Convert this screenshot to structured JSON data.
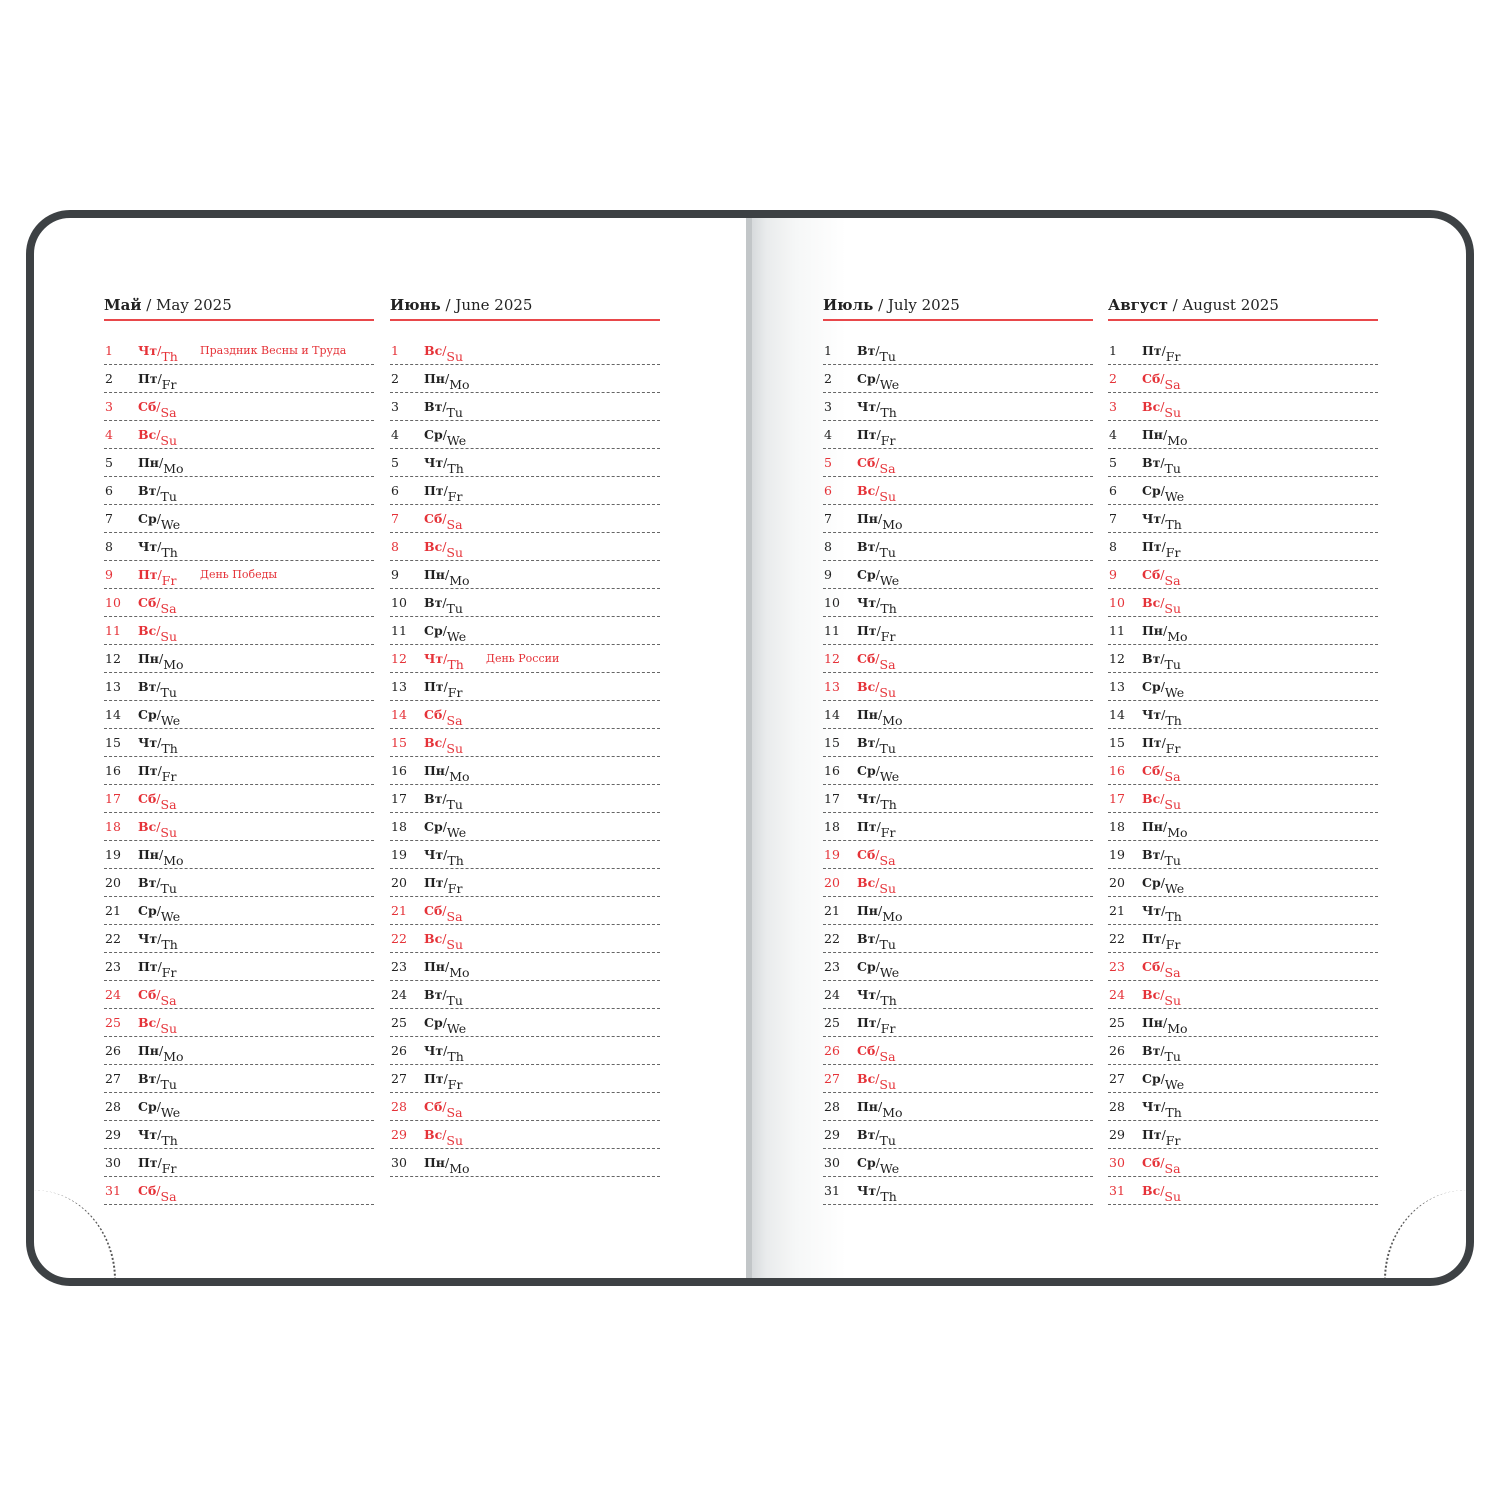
{
  "colors": {
    "accent": "#e53238",
    "frame": "#3d4144",
    "text": "#222222"
  },
  "months": [
    {
      "ru": "Май",
      "en": "May 2025",
      "days": [
        [
          "1",
          "Чт",
          "Th",
          1,
          "Праздник Весны и Труда"
        ],
        [
          "2",
          "Пт",
          "Fr",
          0,
          ""
        ],
        [
          "3",
          "Сб",
          "Sa",
          1,
          ""
        ],
        [
          "4",
          "Вс",
          "Su",
          1,
          ""
        ],
        [
          "5",
          "Пн",
          "Mo",
          0,
          ""
        ],
        [
          "6",
          "Вт",
          "Tu",
          0,
          ""
        ],
        [
          "7",
          "Ср",
          "We",
          0,
          ""
        ],
        [
          "8",
          "Чт",
          "Th",
          0,
          ""
        ],
        [
          "9",
          "Пт",
          "Fr",
          1,
          "День Победы"
        ],
        [
          "10",
          "Сб",
          "Sa",
          1,
          ""
        ],
        [
          "11",
          "Вс",
          "Su",
          1,
          ""
        ],
        [
          "12",
          "Пн",
          "Mo",
          0,
          ""
        ],
        [
          "13",
          "Вт",
          "Tu",
          0,
          ""
        ],
        [
          "14",
          "Ср",
          "We",
          0,
          ""
        ],
        [
          "15",
          "Чт",
          "Th",
          0,
          ""
        ],
        [
          "16",
          "Пт",
          "Fr",
          0,
          ""
        ],
        [
          "17",
          "Сб",
          "Sa",
          1,
          ""
        ],
        [
          "18",
          "Вс",
          "Su",
          1,
          ""
        ],
        [
          "19",
          "Пн",
          "Mo",
          0,
          ""
        ],
        [
          "20",
          "Вт",
          "Tu",
          0,
          ""
        ],
        [
          "21",
          "Ср",
          "We",
          0,
          ""
        ],
        [
          "22",
          "Чт",
          "Th",
          0,
          ""
        ],
        [
          "23",
          "Пт",
          "Fr",
          0,
          ""
        ],
        [
          "24",
          "Сб",
          "Sa",
          1,
          ""
        ],
        [
          "25",
          "Вс",
          "Su",
          1,
          ""
        ],
        [
          "26",
          "Пн",
          "Mo",
          0,
          ""
        ],
        [
          "27",
          "Вт",
          "Tu",
          0,
          ""
        ],
        [
          "28",
          "Ср",
          "We",
          0,
          ""
        ],
        [
          "29",
          "Чт",
          "Th",
          0,
          ""
        ],
        [
          "30",
          "Пт",
          "Fr",
          0,
          ""
        ],
        [
          "31",
          "Сб",
          "Sa",
          1,
          ""
        ]
      ]
    },
    {
      "ru": "Июнь",
      "en": "June 2025",
      "days": [
        [
          "1",
          "Вс",
          "Su",
          1,
          ""
        ],
        [
          "2",
          "Пн",
          "Mo",
          0,
          ""
        ],
        [
          "3",
          "Вт",
          "Tu",
          0,
          ""
        ],
        [
          "4",
          "Ср",
          "We",
          0,
          ""
        ],
        [
          "5",
          "Чт",
          "Th",
          0,
          ""
        ],
        [
          "6",
          "Пт",
          "Fr",
          0,
          ""
        ],
        [
          "7",
          "Сб",
          "Sa",
          1,
          ""
        ],
        [
          "8",
          "Вс",
          "Su",
          1,
          ""
        ],
        [
          "9",
          "Пн",
          "Mo",
          0,
          ""
        ],
        [
          "10",
          "Вт",
          "Tu",
          0,
          ""
        ],
        [
          "11",
          "Ср",
          "We",
          0,
          ""
        ],
        [
          "12",
          "Чт",
          "Th",
          1,
          "День России"
        ],
        [
          "13",
          "Пт",
          "Fr",
          0,
          ""
        ],
        [
          "14",
          "Сб",
          "Sa",
          1,
          ""
        ],
        [
          "15",
          "Вс",
          "Su",
          1,
          ""
        ],
        [
          "16",
          "Пн",
          "Mo",
          0,
          ""
        ],
        [
          "17",
          "Вт",
          "Tu",
          0,
          ""
        ],
        [
          "18",
          "Ср",
          "We",
          0,
          ""
        ],
        [
          "19",
          "Чт",
          "Th",
          0,
          ""
        ],
        [
          "20",
          "Пт",
          "Fr",
          0,
          ""
        ],
        [
          "21",
          "Сб",
          "Sa",
          1,
          ""
        ],
        [
          "22",
          "Вс",
          "Su",
          1,
          ""
        ],
        [
          "23",
          "Пн",
          "Mo",
          0,
          ""
        ],
        [
          "24",
          "Вт",
          "Tu",
          0,
          ""
        ],
        [
          "25",
          "Ср",
          "We",
          0,
          ""
        ],
        [
          "26",
          "Чт",
          "Th",
          0,
          ""
        ],
        [
          "27",
          "Пт",
          "Fr",
          0,
          ""
        ],
        [
          "28",
          "Сб",
          "Sa",
          1,
          ""
        ],
        [
          "29",
          "Вс",
          "Su",
          1,
          ""
        ],
        [
          "30",
          "Пн",
          "Mo",
          0,
          ""
        ]
      ]
    },
    {
      "ru": "Июль",
      "en": "July 2025",
      "days": [
        [
          "1",
          "Вт",
          "Tu",
          0,
          ""
        ],
        [
          "2",
          "Ср",
          "We",
          0,
          ""
        ],
        [
          "3",
          "Чт",
          "Th",
          0,
          ""
        ],
        [
          "4",
          "Пт",
          "Fr",
          0,
          ""
        ],
        [
          "5",
          "Сб",
          "Sa",
          1,
          ""
        ],
        [
          "6",
          "Вс",
          "Su",
          1,
          ""
        ],
        [
          "7",
          "Пн",
          "Mo",
          0,
          ""
        ],
        [
          "8",
          "Вт",
          "Tu",
          0,
          ""
        ],
        [
          "9",
          "Ср",
          "We",
          0,
          ""
        ],
        [
          "10",
          "Чт",
          "Th",
          0,
          ""
        ],
        [
          "11",
          "Пт",
          "Fr",
          0,
          ""
        ],
        [
          "12",
          "Сб",
          "Sa",
          1,
          ""
        ],
        [
          "13",
          "Вс",
          "Su",
          1,
          ""
        ],
        [
          "14",
          "Пн",
          "Mo",
          0,
          ""
        ],
        [
          "15",
          "Вт",
          "Tu",
          0,
          ""
        ],
        [
          "16",
          "Ср",
          "We",
          0,
          ""
        ],
        [
          "17",
          "Чт",
          "Th",
          0,
          ""
        ],
        [
          "18",
          "Пт",
          "Fr",
          0,
          ""
        ],
        [
          "19",
          "Сб",
          "Sa",
          1,
          ""
        ],
        [
          "20",
          "Вс",
          "Su",
          1,
          ""
        ],
        [
          "21",
          "Пн",
          "Mo",
          0,
          ""
        ],
        [
          "22",
          "Вт",
          "Tu",
          0,
          ""
        ],
        [
          "23",
          "Ср",
          "We",
          0,
          ""
        ],
        [
          "24",
          "Чт",
          "Th",
          0,
          ""
        ],
        [
          "25",
          "Пт",
          "Fr",
          0,
          ""
        ],
        [
          "26",
          "Сб",
          "Sa",
          1,
          ""
        ],
        [
          "27",
          "Вс",
          "Su",
          1,
          ""
        ],
        [
          "28",
          "Пн",
          "Mo",
          0,
          ""
        ],
        [
          "29",
          "Вт",
          "Tu",
          0,
          ""
        ],
        [
          "30",
          "Ср",
          "We",
          0,
          ""
        ],
        [
          "31",
          "Чт",
          "Th",
          0,
          ""
        ]
      ]
    },
    {
      "ru": "Август",
      "en": "August 2025",
      "days": [
        [
          "1",
          "Пт",
          "Fr",
          0,
          ""
        ],
        [
          "2",
          "Сб",
          "Sa",
          1,
          ""
        ],
        [
          "3",
          "Вс",
          "Su",
          1,
          ""
        ],
        [
          "4",
          "Пн",
          "Mo",
          0,
          ""
        ],
        [
          "5",
          "Вт",
          "Tu",
          0,
          ""
        ],
        [
          "6",
          "Ср",
          "We",
          0,
          ""
        ],
        [
          "7",
          "Чт",
          "Th",
          0,
          ""
        ],
        [
          "8",
          "Пт",
          "Fr",
          0,
          ""
        ],
        [
          "9",
          "Сб",
          "Sa",
          1,
          ""
        ],
        [
          "10",
          "Вс",
          "Su",
          1,
          ""
        ],
        [
          "11",
          "Пн",
          "Mo",
          0,
          ""
        ],
        [
          "12",
          "Вт",
          "Tu",
          0,
          ""
        ],
        [
          "13",
          "Ср",
          "We",
          0,
          ""
        ],
        [
          "14",
          "Чт",
          "Th",
          0,
          ""
        ],
        [
          "15",
          "Пт",
          "Fr",
          0,
          ""
        ],
        [
          "16",
          "Сб",
          "Sa",
          1,
          ""
        ],
        [
          "17",
          "Вс",
          "Su",
          1,
          ""
        ],
        [
          "18",
          "Пн",
          "Mo",
          0,
          ""
        ],
        [
          "19",
          "Вт",
          "Tu",
          0,
          ""
        ],
        [
          "20",
          "Ср",
          "We",
          0,
          ""
        ],
        [
          "21",
          "Чт",
          "Th",
          0,
          ""
        ],
        [
          "22",
          "Пт",
          "Fr",
          0,
          ""
        ],
        [
          "23",
          "Сб",
          "Sa",
          1,
          ""
        ],
        [
          "24",
          "Вс",
          "Su",
          1,
          ""
        ],
        [
          "25",
          "Пн",
          "Mo",
          0,
          ""
        ],
        [
          "26",
          "Вт",
          "Tu",
          0,
          ""
        ],
        [
          "27",
          "Ср",
          "We",
          0,
          ""
        ],
        [
          "28",
          "Чт",
          "Th",
          0,
          ""
        ],
        [
          "29",
          "Пт",
          "Fr",
          0,
          ""
        ],
        [
          "30",
          "Сб",
          "Sa",
          1,
          ""
        ],
        [
          "31",
          "Вс",
          "Su",
          1,
          ""
        ]
      ]
    }
  ]
}
